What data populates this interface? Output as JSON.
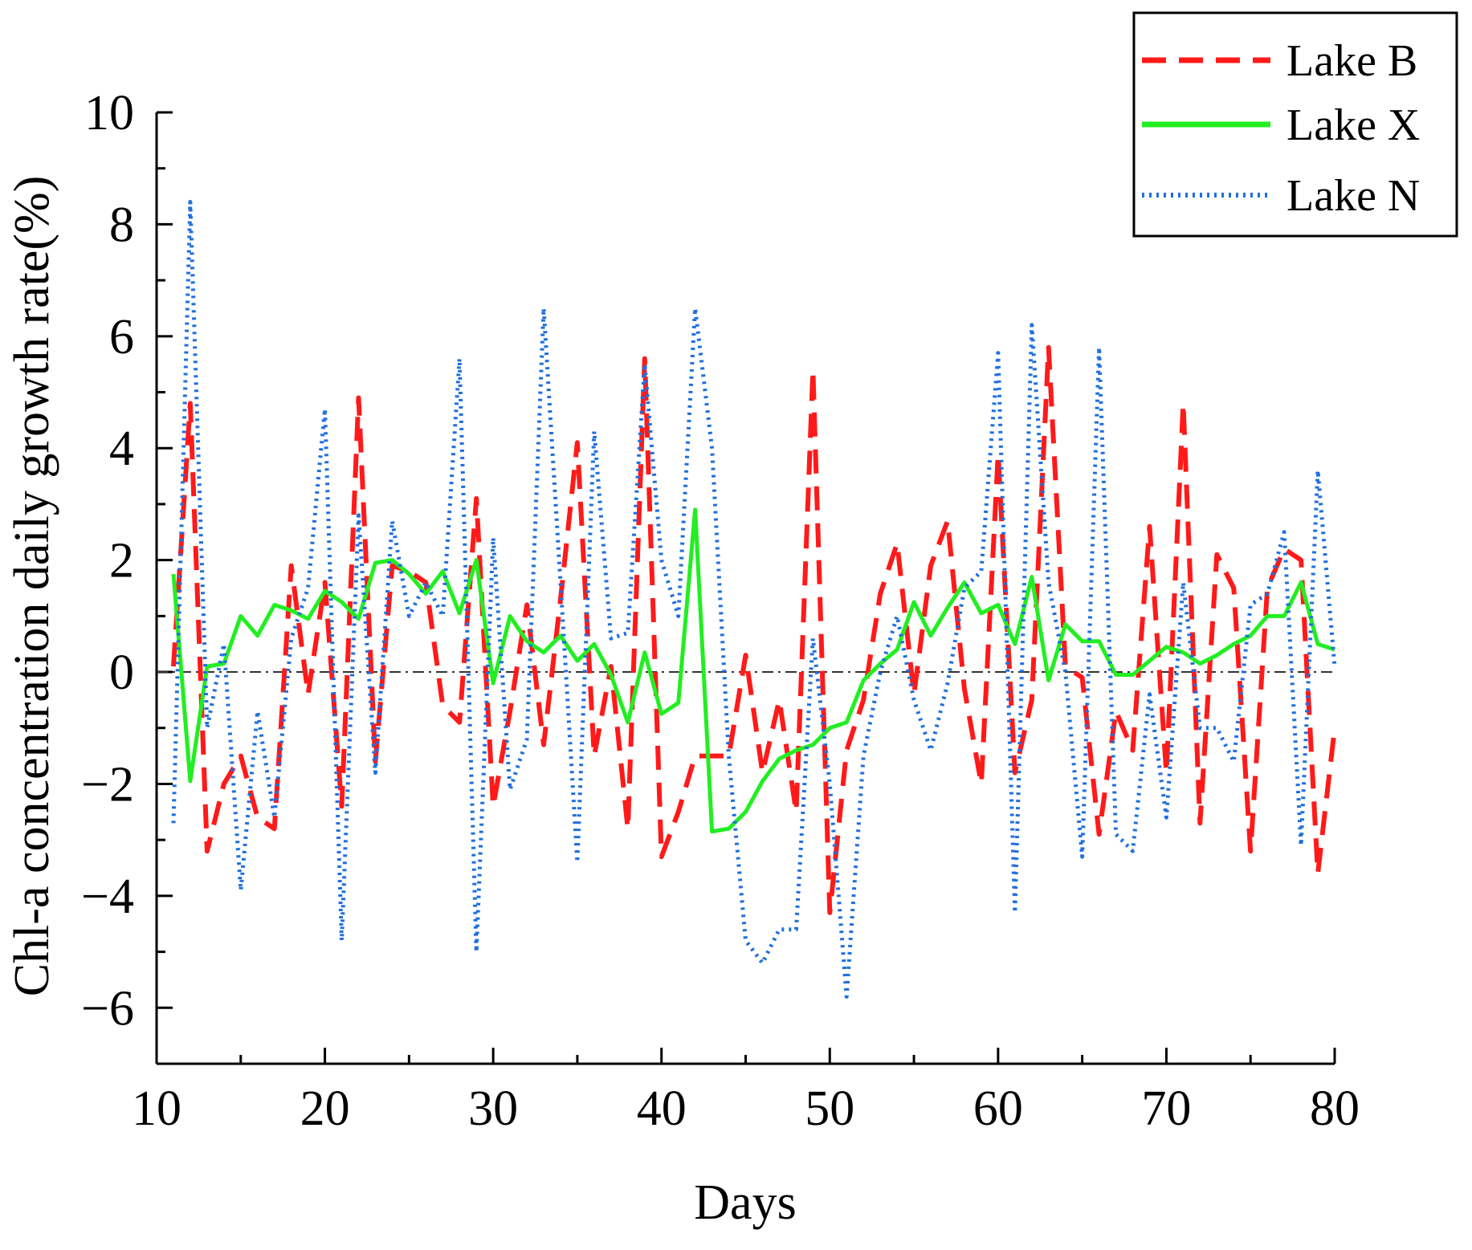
{
  "chart_data": {
    "type": "line",
    "title": "",
    "xlabel": "Days",
    "ylabel": "Chl-a concentration daily growth rate(%)",
    "xlim": [
      10,
      80
    ],
    "ylim": [
      -7,
      10
    ],
    "xticks": [
      10,
      20,
      30,
      40,
      50,
      60,
      70,
      80
    ],
    "yticks": [
      -6,
      -4,
      -2,
      0,
      2,
      4,
      6,
      8,
      10
    ],
    "ytick_labels": [
      "−6",
      "−4",
      "−2",
      "0",
      "2",
      "4",
      "6",
      "8",
      "10"
    ],
    "x": [
      11,
      12,
      13,
      14,
      15,
      16,
      17,
      18,
      19,
      20,
      21,
      22,
      23,
      24,
      25,
      26,
      27,
      28,
      29,
      30,
      31,
      32,
      33,
      34,
      35,
      36,
      37,
      38,
      39,
      40,
      41,
      42,
      43,
      44,
      45,
      46,
      47,
      48,
      49,
      50,
      51,
      52,
      53,
      54,
      55,
      56,
      57,
      58,
      59,
      60,
      61,
      62,
      63,
      64,
      65,
      66,
      67,
      68,
      69,
      70,
      71,
      72,
      73,
      74,
      75,
      76,
      77,
      78,
      79,
      80
    ],
    "reference_line": {
      "y": 0,
      "style": "dash-dot",
      "color": "#333333"
    },
    "legend_position": "top-right",
    "series": [
      {
        "name": "Lake B",
        "color": "#ff1a1a",
        "style": "dashed",
        "values": [
          0.1,
          4.8,
          -3.2,
          -2.0,
          -1.5,
          -2.6,
          -2.8,
          1.9,
          -0.4,
          1.6,
          -2.4,
          4.9,
          -1.6,
          1.9,
          1.8,
          1.6,
          -0.6,
          -0.9,
          3.1,
          -2.4,
          -0.7,
          1.2,
          -1.3,
          1.3,
          4.1,
          -1.5,
          0.1,
          -2.8,
          5.6,
          -3.3,
          -2.5,
          -1.5,
          -1.5,
          -1.5,
          0.3,
          -1.8,
          -0.5,
          -2.5,
          5.4,
          -4.3,
          -1.4,
          -0.5,
          1.4,
          2.3,
          -0.4,
          1.9,
          2.7,
          -0.3,
          -2.0,
          3.9,
          -1.8,
          -0.5,
          5.8,
          0.1,
          -0.1,
          -2.9,
          -0.7,
          -1.4,
          2.6,
          -1.8,
          4.8,
          -2.7,
          2.1,
          1.5,
          -3.2,
          1.5,
          2.2,
          2.0,
          -3.6,
          -1.0
        ]
      },
      {
        "name": "Lake X",
        "color": "#22ee22",
        "style": "solid",
        "values": [
          1.75,
          -1.95,
          0.1,
          0.15,
          1.0,
          0.65,
          1.2,
          1.1,
          0.95,
          1.45,
          1.25,
          0.95,
          1.95,
          2.0,
          1.75,
          1.4,
          1.8,
          1.05,
          2.0,
          -0.2,
          1.0,
          0.55,
          0.35,
          0.65,
          0.2,
          0.5,
          -0.05,
          -0.9,
          0.35,
          -0.75,
          -0.55,
          2.9,
          -2.85,
          -2.8,
          -2.5,
          -1.95,
          -1.55,
          -1.4,
          -1.3,
          -1.0,
          -0.9,
          -0.15,
          0.15,
          0.4,
          1.25,
          0.65,
          1.15,
          1.6,
          1.05,
          1.2,
          0.5,
          1.7,
          -0.15,
          0.85,
          0.55,
          0.55,
          -0.05,
          -0.05,
          0.2,
          0.45,
          0.35,
          0.15,
          0.3,
          0.5,
          0.65,
          1.0,
          1.0,
          1.6,
          0.5,
          0.4
        ]
      },
      {
        "name": "Lake N",
        "color": "#1f6fe0",
        "style": "dotted",
        "values": [
          -2.7,
          8.4,
          -1.0,
          0.5,
          -3.9,
          -0.7,
          -2.6,
          0.6,
          1.5,
          4.7,
          -4.8,
          2.8,
          -1.8,
          2.7,
          1.0,
          1.6,
          1.0,
          5.6,
          -5.0,
          2.4,
          -2.1,
          -1.2,
          6.5,
          1.6,
          -3.4,
          4.3,
          0.6,
          0.7,
          5.5,
          2.0,
          1.0,
          6.5,
          4.0,
          -1.5,
          -4.8,
          -5.2,
          -4.6,
          -4.6,
          0.6,
          -2.0,
          -5.8,
          -1.5,
          0.0,
          1.0,
          -0.5,
          -1.4,
          -0.2,
          1.5,
          1.8,
          5.7,
          -4.3,
          6.2,
          1.6,
          0.0,
          -3.3,
          5.8,
          -2.9,
          -3.2,
          -0.4,
          -2.6,
          1.6,
          -1.0,
          -1.0,
          -1.6,
          1.2,
          1.4,
          2.5,
          -3.1,
          3.6,
          0.1
        ]
      }
    ]
  }
}
